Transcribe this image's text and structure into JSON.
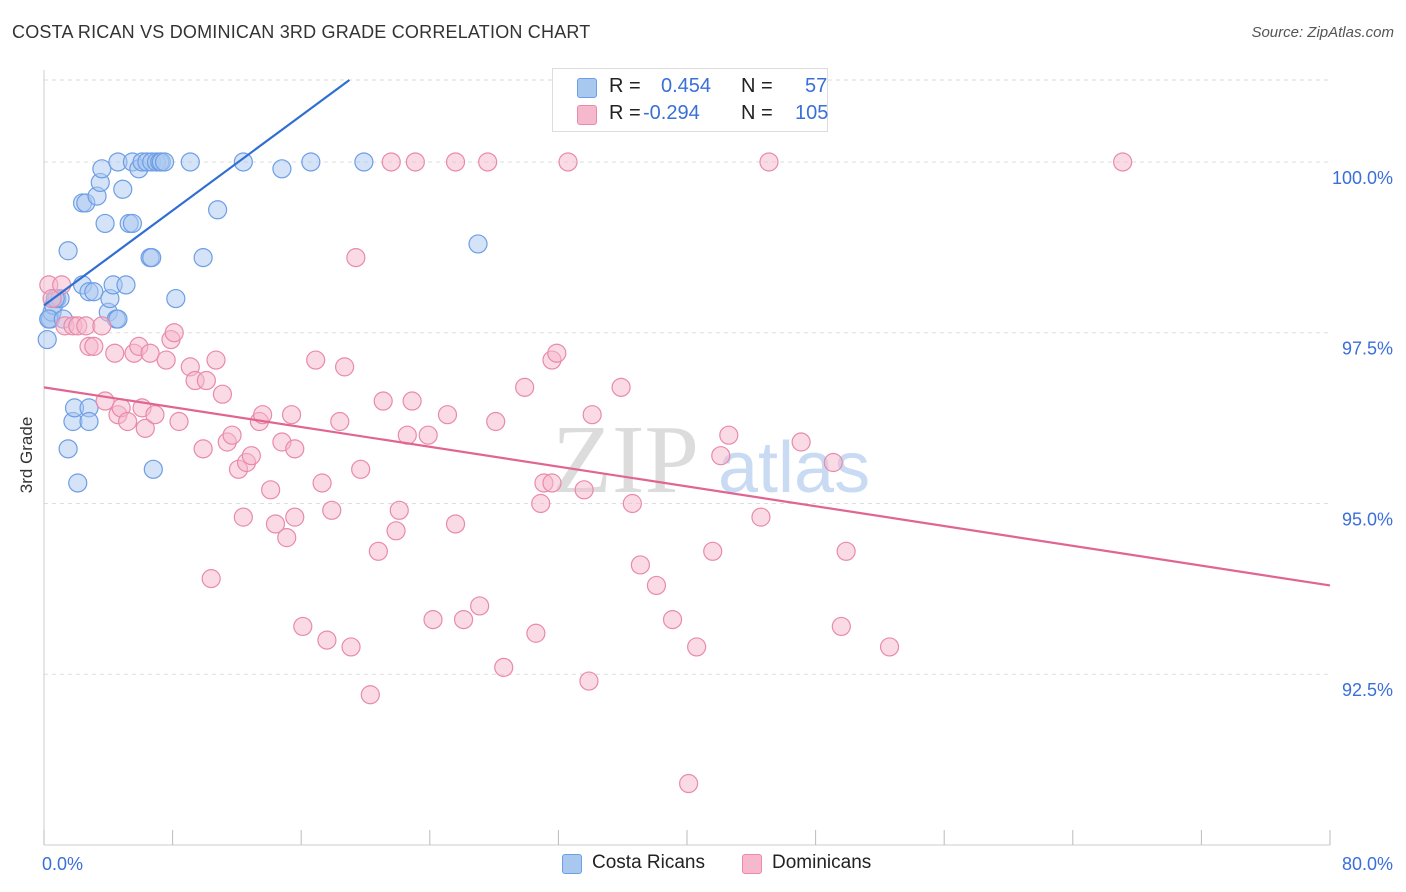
{
  "header": {
    "title": "COSTA RICAN VS DOMINICAN 3RD GRADE CORRELATION CHART",
    "source": "Source: ZipAtlas.com"
  },
  "legend": {
    "r_label": "R =",
    "n_label": "N =",
    "costa": {
      "r": "0.454",
      "n": "57"
    },
    "dominican": {
      "r": "-0.294",
      "n": "105"
    }
  },
  "bottom_legend": {
    "costa": "Costa Ricans",
    "dominican": "Dominicans"
  },
  "colors": {
    "costa_fill": "#a9c8f0",
    "costa_stroke": "#6d9ee6",
    "costa_line": "#2f6fd1",
    "dom_fill": "#f5b8cc",
    "dom_stroke": "#e98aab",
    "dom_line": "#e06592",
    "tick_text": "#3a6fd8",
    "grid": "#dddddd"
  },
  "watermark": {
    "zip": "ZIP",
    "atlas": "atlas"
  },
  "chart_data": {
    "type": "scatter",
    "title": "COSTA RICAN VS DOMINICAN 3RD GRADE CORRELATION CHART",
    "xlabel": "",
    "ylabel": "3rd Grade",
    "xlim": [
      0,
      80
    ],
    "ylim": [
      90.0,
      101.2
    ],
    "x_tick_labels": [
      "0.0%",
      "80.0%"
    ],
    "y_ticks": [
      92.5,
      95.0,
      97.5,
      100.0
    ],
    "y_tick_labels": [
      "92.5%",
      "95.0%",
      "97.5%",
      "100.0%"
    ],
    "grid": true,
    "series": [
      {
        "name": "Costa Ricans",
        "r": 0.454,
        "n": 57,
        "trend": {
          "x0": 0,
          "y0": 97.9,
          "x1": 19.0,
          "y1": 101.2
        },
        "points": [
          [
            0.2,
            97.4
          ],
          [
            0.3,
            97.7
          ],
          [
            0.4,
            97.7
          ],
          [
            0.5,
            97.8
          ],
          [
            0.6,
            97.9
          ],
          [
            0.8,
            98.0
          ],
          [
            1.0,
            98.0
          ],
          [
            1.5,
            98.7
          ],
          [
            1.5,
            95.8
          ],
          [
            1.8,
            96.2
          ],
          [
            1.9,
            96.4
          ],
          [
            2.1,
            95.3
          ],
          [
            2.4,
            98.2
          ],
          [
            2.4,
            99.4
          ],
          [
            2.6,
            99.4
          ],
          [
            2.8,
            98.1
          ],
          [
            2.8,
            96.4
          ],
          [
            2.8,
            96.2
          ],
          [
            3.1,
            98.1
          ],
          [
            3.3,
            99.5
          ],
          [
            3.5,
            99.7
          ],
          [
            3.6,
            99.9
          ],
          [
            3.8,
            99.1
          ],
          [
            4.0,
            97.8
          ],
          [
            4.1,
            98.0
          ],
          [
            4.3,
            98.2
          ],
          [
            4.5,
            97.7
          ],
          [
            4.6,
            97.7
          ],
          [
            4.9,
            99.6
          ],
          [
            5.1,
            98.2
          ],
          [
            5.3,
            99.1
          ],
          [
            5.5,
            99.1
          ],
          [
            4.6,
            100.0
          ],
          [
            5.5,
            100.0
          ],
          [
            5.9,
            99.9
          ],
          [
            6.1,
            100.0
          ],
          [
            6.4,
            100.0
          ],
          [
            6.6,
            98.6
          ],
          [
            6.7,
            98.6
          ],
          [
            6.7,
            100.0
          ],
          [
            6.8,
            95.5
          ],
          [
            7.0,
            100.0
          ],
          [
            7.2,
            100.0
          ],
          [
            7.3,
            100.0
          ],
          [
            7.5,
            100.0
          ],
          [
            8.2,
            98.0
          ],
          [
            9.1,
            100.0
          ],
          [
            9.9,
            98.6
          ],
          [
            10.8,
            99.3
          ],
          [
            12.4,
            100.0
          ],
          [
            14.8,
            99.9
          ],
          [
            16.6,
            100.0
          ],
          [
            19.9,
            100.0
          ],
          [
            27.0,
            98.8
          ],
          [
            0.3,
            97.7
          ],
          [
            0.7,
            98.0
          ],
          [
            1.2,
            97.7
          ]
        ]
      },
      {
        "name": "Dominicans",
        "r": -0.294,
        "n": 105,
        "trend": {
          "x0": 0,
          "y0": 96.7,
          "x1": 80.0,
          "y1": 93.8
        },
        "points": [
          [
            0.3,
            98.2
          ],
          [
            0.5,
            98.0
          ],
          [
            1.1,
            98.2
          ],
          [
            1.3,
            97.6
          ],
          [
            1.8,
            97.6
          ],
          [
            2.1,
            97.6
          ],
          [
            2.6,
            97.6
          ],
          [
            2.8,
            97.3
          ],
          [
            3.1,
            97.3
          ],
          [
            3.6,
            97.6
          ],
          [
            3.8,
            96.5
          ],
          [
            4.4,
            97.2
          ],
          [
            4.6,
            96.3
          ],
          [
            4.8,
            96.4
          ],
          [
            5.2,
            96.2
          ],
          [
            5.6,
            97.2
          ],
          [
            5.9,
            97.3
          ],
          [
            6.1,
            96.4
          ],
          [
            6.3,
            96.1
          ],
          [
            6.6,
            97.2
          ],
          [
            6.9,
            96.3
          ],
          [
            7.6,
            97.1
          ],
          [
            7.9,
            97.4
          ],
          [
            8.1,
            97.5
          ],
          [
            8.4,
            96.2
          ],
          [
            9.1,
            97.0
          ],
          [
            9.4,
            96.8
          ],
          [
            9.9,
            95.8
          ],
          [
            10.1,
            96.8
          ],
          [
            10.4,
            93.9
          ],
          [
            10.7,
            97.1
          ],
          [
            11.1,
            96.6
          ],
          [
            11.4,
            95.9
          ],
          [
            11.7,
            96.0
          ],
          [
            12.1,
            95.5
          ],
          [
            12.4,
            94.8
          ],
          [
            12.6,
            95.6
          ],
          [
            12.9,
            95.7
          ],
          [
            13.4,
            96.2
          ],
          [
            13.6,
            96.3
          ],
          [
            14.1,
            95.2
          ],
          [
            14.4,
            94.7
          ],
          [
            14.8,
            95.9
          ],
          [
            15.1,
            94.5
          ],
          [
            15.4,
            96.3
          ],
          [
            15.6,
            95.8
          ],
          [
            16.1,
            93.2
          ],
          [
            16.9,
            97.1
          ],
          [
            17.3,
            95.3
          ],
          [
            17.6,
            93.0
          ],
          [
            17.9,
            94.9
          ],
          [
            18.4,
            96.2
          ],
          [
            18.7,
            97.0
          ],
          [
            19.1,
            92.9
          ],
          [
            19.4,
            98.6
          ],
          [
            19.7,
            95.5
          ],
          [
            20.3,
            92.2
          ],
          [
            20.8,
            94.3
          ],
          [
            21.1,
            96.5
          ],
          [
            21.9,
            94.6
          ],
          [
            22.1,
            94.9
          ],
          [
            22.6,
            96.0
          ],
          [
            22.9,
            96.5
          ],
          [
            23.9,
            96.0
          ],
          [
            24.2,
            93.3
          ],
          [
            25.1,
            96.3
          ],
          [
            25.6,
            94.7
          ],
          [
            26.1,
            93.3
          ],
          [
            27.1,
            93.5
          ],
          [
            28.1,
            96.2
          ],
          [
            28.6,
            92.6
          ],
          [
            29.9,
            96.7
          ],
          [
            30.6,
            93.1
          ],
          [
            30.9,
            95.0
          ],
          [
            31.1,
            95.3
          ],
          [
            31.6,
            95.3
          ],
          [
            32.6,
            100.0
          ],
          [
            33.6,
            95.2
          ],
          [
            33.9,
            92.4
          ],
          [
            34.1,
            96.3
          ],
          [
            35.9,
            96.7
          ],
          [
            36.6,
            95.0
          ],
          [
            37.1,
            94.1
          ],
          [
            38.1,
            93.8
          ],
          [
            39.1,
            93.3
          ],
          [
            40.6,
            92.9
          ],
          [
            41.6,
            94.3
          ],
          [
            42.1,
            95.7
          ],
          [
            42.6,
            96.0
          ],
          [
            44.6,
            94.8
          ],
          [
            45.1,
            100.0
          ],
          [
            47.1,
            95.9
          ],
          [
            49.1,
            95.6
          ],
          [
            49.6,
            93.2
          ],
          [
            49.9,
            94.3
          ],
          [
            52.6,
            92.9
          ],
          [
            67.1,
            100.0
          ],
          [
            40.1,
            90.9
          ],
          [
            31.6,
            97.1
          ],
          [
            31.9,
            97.2
          ],
          [
            21.6,
            100.0
          ],
          [
            23.1,
            100.0
          ],
          [
            25.6,
            100.0
          ],
          [
            27.6,
            100.0
          ],
          [
            15.6,
            94.8
          ]
        ]
      }
    ]
  }
}
